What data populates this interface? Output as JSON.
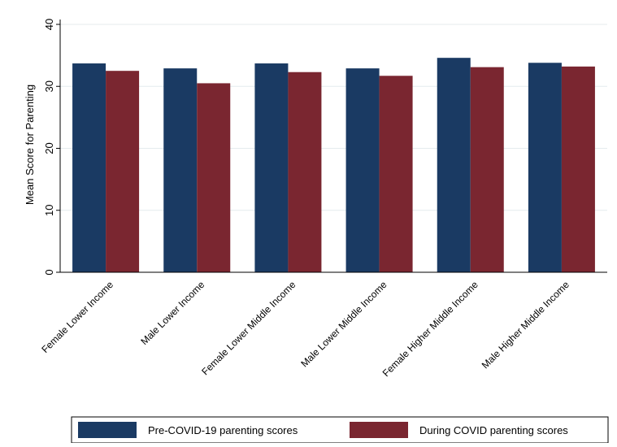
{
  "chart_data": {
    "type": "bar",
    "categories": [
      "Female Lower Income",
      "Male Lower Income",
      "Female Lower Middle Income",
      "Male Lower Middle Income",
      "Female Higher Middle Income",
      "Male Higher Middle Income"
    ],
    "series": [
      {
        "name": "Pre-COVID-19 parenting scores",
        "color": "#1a3a63",
        "values": [
          33.7,
          32.9,
          33.7,
          32.9,
          34.6,
          33.8
        ]
      },
      {
        "name": "During COVID parenting scores",
        "color": "#7a2630",
        "values": [
          32.5,
          30.5,
          32.3,
          31.7,
          33.1,
          33.2
        ]
      }
    ],
    "ylabel": "Mean Score for Parenting",
    "xlabel": "",
    "ylim": [
      0,
      40
    ],
    "yticks": [
      "0",
      "10",
      "20",
      "30",
      "40"
    ],
    "grid": true,
    "legend_position": "bottom"
  }
}
